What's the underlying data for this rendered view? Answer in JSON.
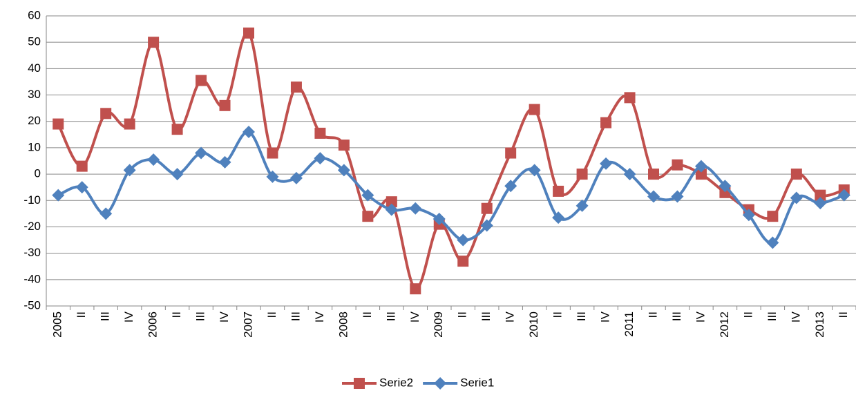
{
  "chart_data": {
    "type": "line",
    "categories": [
      "2005",
      "II",
      "III",
      "IV",
      "2006",
      "II",
      "III",
      "IV",
      "2007",
      "II",
      "III",
      "IV",
      "2008",
      "II",
      "III",
      "IV",
      "2009",
      "II",
      "III",
      "IV",
      "2010",
      "II",
      "III",
      "IV",
      "2011",
      "II",
      "III",
      "IV",
      "2012",
      "II",
      "III",
      "IV",
      "2013",
      "II"
    ],
    "series": [
      {
        "name": "Serie2",
        "color": "#c0504d",
        "marker": "square",
        "values": [
          19,
          3,
          23,
          19,
          50,
          17,
          35.5,
          26,
          53.5,
          8,
          33,
          15.5,
          11,
          -16,
          -10.5,
          -43.5,
          -19,
          -33,
          -13,
          8,
          24.5,
          -6.5,
          0,
          19.5,
          29,
          0,
          3.5,
          0,
          -7,
          -13.5,
          -16,
          0,
          -8,
          -6
        ]
      },
      {
        "name": "Serie1",
        "color": "#4f81bd",
        "marker": "diamond",
        "values": [
          -8,
          -5,
          -15,
          1.5,
          5.5,
          0,
          8,
          4.5,
          16,
          -1,
          -1.5,
          6,
          1.5,
          -8,
          -13.5,
          -13,
          -17,
          -25,
          -19.5,
          -4.5,
          1.5,
          -16.5,
          -12,
          4,
          0,
          -8.5,
          -8.5,
          3,
          -4.5,
          -15.5,
          -26,
          -9,
          -11,
          -8
        ]
      }
    ],
    "ylim": [
      -50,
      60
    ],
    "yticks": [
      -50,
      -40,
      -30,
      -20,
      -10,
      0,
      10,
      20,
      30,
      40,
      50,
      60
    ],
    "grid": true,
    "smooth": true,
    "legend": "bottom"
  }
}
